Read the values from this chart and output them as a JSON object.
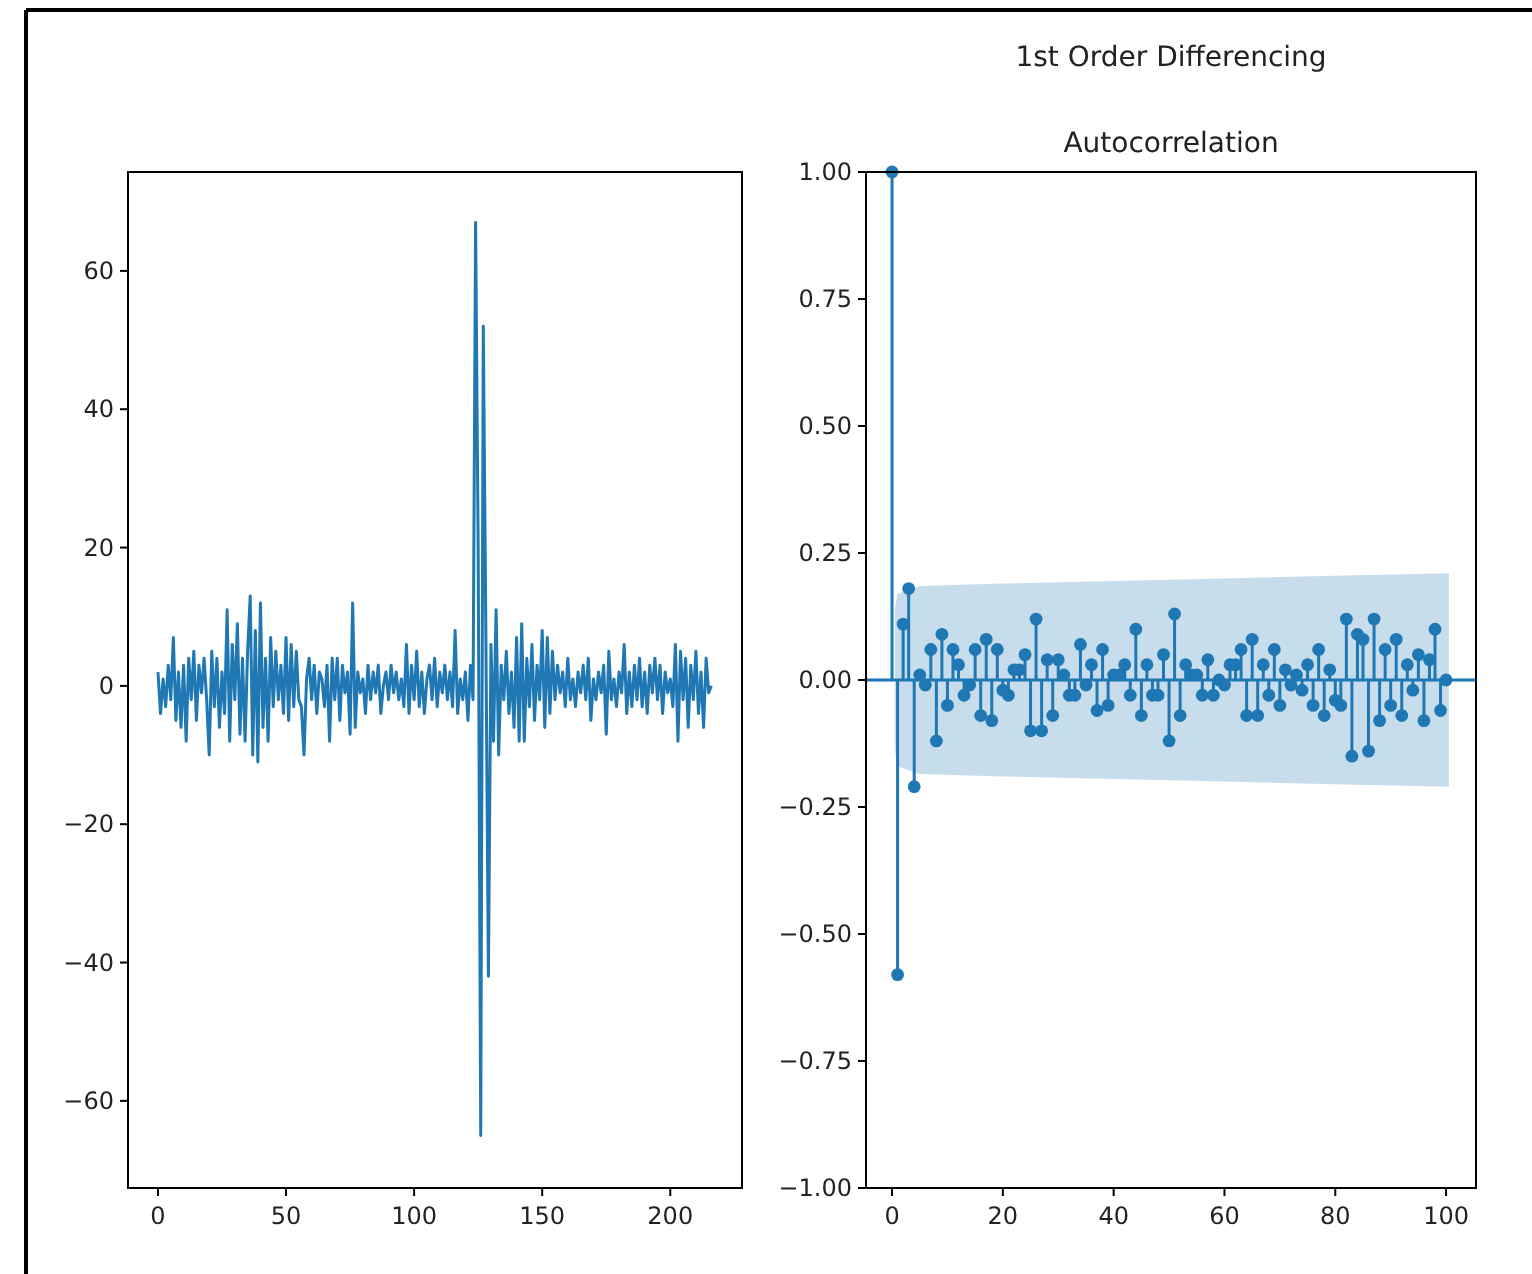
{
  "chart_data": [
    {
      "type": "line",
      "x": [
        0,
        1,
        2,
        3,
        4,
        5,
        6,
        7,
        8,
        9,
        10,
        11,
        12,
        13,
        14,
        15,
        16,
        17,
        18,
        19,
        20,
        21,
        22,
        23,
        24,
        25,
        26,
        27,
        28,
        29,
        30,
        31,
        32,
        33,
        34,
        35,
        36,
        37,
        38,
        39,
        40,
        41,
        42,
        43,
        44,
        45,
        46,
        47,
        48,
        49,
        50,
        51,
        52,
        53,
        54,
        55,
        56,
        57,
        58,
        59,
        60,
        61,
        62,
        63,
        64,
        65,
        66,
        67,
        68,
        69,
        70,
        71,
        72,
        73,
        74,
        75,
        76,
        77,
        78,
        79,
        80,
        81,
        82,
        83,
        84,
        85,
        86,
        87,
        88,
        89,
        90,
        91,
        92,
        93,
        94,
        95,
        96,
        97,
        98,
        99,
        100,
        101,
        102,
        103,
        104,
        105,
        106,
        107,
        108,
        109,
        110,
        111,
        112,
        113,
        114,
        115,
        116,
        117,
        118,
        119,
        120,
        121,
        122,
        123,
        124,
        125,
        126,
        127,
        128,
        129,
        130,
        131,
        132,
        133,
        134,
        135,
        136,
        137,
        138,
        139,
        140,
        141,
        142,
        143,
        144,
        145,
        146,
        147,
        148,
        149,
        150,
        151,
        152,
        153,
        154,
        155,
        156,
        157,
        158,
        159,
        160,
        161,
        162,
        163,
        164,
        165,
        166,
        167,
        168,
        169,
        170,
        171,
        172,
        173,
        174,
        175,
        176,
        177,
        178,
        179,
        180,
        181,
        182,
        183,
        184,
        185,
        186,
        187,
        188,
        189,
        190,
        191,
        192,
        193,
        194,
        195,
        196,
        197,
        198,
        199,
        200,
        201,
        202,
        203,
        204,
        205,
        206,
        207,
        208,
        209,
        210,
        211,
        212,
        213,
        214,
        215,
        216
      ],
      "xlim": [
        -11.7,
        228
      ],
      "ylim": [
        -72.6,
        74.3
      ],
      "xticks": [
        0,
        50,
        100,
        150,
        200
      ],
      "yticks": [
        -60,
        -40,
        -20,
        0,
        20,
        40,
        60
      ],
      "line_style": "solid",
      "series": [
        {
          "color": "#1f77b4",
          "values": [
            2,
            -4,
            1,
            -3,
            3,
            -2,
            7,
            -5,
            2,
            -6,
            3,
            -8,
            4,
            -2,
            5,
            -5,
            3,
            -1,
            4,
            -2,
            -10,
            5,
            -3,
            4,
            -6,
            2,
            -4,
            11,
            -8,
            6,
            -2,
            9,
            -7,
            4,
            -8,
            5,
            13,
            -10,
            8,
            -11,
            12,
            -6,
            4,
            -8,
            7,
            -3,
            5,
            -2,
            3,
            -4,
            7,
            -5,
            6,
            -3,
            5,
            -2,
            -3,
            -10,
            1,
            4,
            -2,
            3,
            -4,
            2,
            1,
            -3,
            3,
            -8,
            4,
            -2,
            4,
            -5,
            3,
            -1,
            2,
            -7,
            12,
            -6,
            2,
            -1,
            1,
            -4,
            3,
            -2,
            2,
            -1,
            3,
            -4,
            0,
            2,
            -2,
            3,
            -1,
            2,
            -2,
            1,
            -3,
            6,
            -4,
            3,
            -2,
            5,
            -3,
            2,
            -4,
            1,
            3,
            -2,
            4,
            -3,
            2,
            -1,
            3,
            -2,
            2,
            -3,
            8,
            -4,
            1,
            -2,
            2,
            -5,
            3,
            -2,
            67,
            20,
            -65,
            52,
            8,
            -42,
            6,
            -8,
            11,
            -10,
            3,
            -2,
            5,
            -4,
            2,
            -6,
            7,
            -8,
            9,
            -8,
            4,
            -3,
            6,
            -5,
            3,
            -2,
            8,
            -6,
            7,
            -4,
            5,
            -2,
            3,
            -1,
            2,
            -3,
            4,
            -2,
            1,
            -3,
            2,
            -1,
            3,
            -2,
            4,
            -5,
            1,
            -2,
            2,
            -1,
            3,
            -7,
            5,
            -2,
            1,
            -3,
            2,
            -1,
            6,
            -4,
            2,
            -3,
            3,
            -2,
            4,
            -3,
            2,
            -4,
            3,
            -1,
            4,
            -2,
            3,
            -4,
            2,
            -1,
            1,
            -3,
            6,
            -8,
            5,
            -2,
            4,
            -6,
            3,
            -2,
            5,
            -4,
            2,
            -6,
            4,
            -1,
            0
          ]
        }
      ]
    },
    {
      "type": "lollipop",
      "title": "Autocorrelation",
      "annotations": [
        "1st Order Differencing"
      ],
      "xlim": [
        -4.7,
        105.4
      ],
      "ylim": [
        -1,
        1
      ],
      "xticks": [
        0,
        20,
        40,
        60,
        80,
        100
      ],
      "yticks": [
        {
          "value": -1,
          "label": "−1.00"
        },
        {
          "value": -0.75,
          "label": "−0.75"
        },
        {
          "value": -0.5,
          "label": "−0.50"
        },
        {
          "value": -0.25,
          "label": "−0.25"
        },
        {
          "value": 0,
          "label": "0.00"
        },
        {
          "value": 0.25,
          "label": "0.25"
        },
        {
          "value": 0.5,
          "label": "0.50"
        },
        {
          "value": 0.75,
          "label": "0.75"
        },
        {
          "value": 1,
          "label": "1.00"
        }
      ],
      "marker": "circle",
      "series": [
        {
          "type": "line",
          "marker": "none",
          "color": "#1f77b4",
          "x": [
            -4.7,
            0.5,
            1,
            5,
            20,
            40,
            60,
            80,
            100.5,
            105.4
          ],
          "values": [
            0,
            0,
            0,
            0,
            0,
            0,
            0,
            0,
            0,
            0
          ],
          "lower": [
            null,
            -0.14,
            -0.17,
            -0.185,
            -0.19,
            -0.195,
            -0.2,
            -0.205,
            -0.21,
            null
          ],
          "upper": [
            null,
            0.14,
            0.17,
            0.185,
            0.19,
            0.195,
            0.2,
            0.205,
            0.21,
            null
          ]
        },
        {
          "type": "lollipop",
          "color": "#1f77b4",
          "x": [
            0,
            1,
            2,
            3,
            4,
            5,
            6,
            7,
            8,
            9,
            10,
            11,
            12,
            13,
            14,
            15,
            16,
            17,
            18,
            19,
            20,
            21,
            22,
            23,
            24,
            25,
            26,
            27,
            28,
            29,
            30,
            31,
            32,
            33,
            34,
            35,
            36,
            37,
            38,
            39,
            40,
            41,
            42,
            43,
            44,
            45,
            46,
            47,
            48,
            49,
            50,
            51,
            52,
            53,
            54,
            55,
            56,
            57,
            58,
            59,
            60,
            61,
            62,
            63,
            64,
            65,
            66,
            67,
            68,
            69,
            70,
            71,
            72,
            73,
            74,
            75,
            76,
            77,
            78,
            79,
            80,
            81,
            82,
            83,
            84,
            85,
            86,
            87,
            88,
            89,
            90,
            91,
            92,
            93,
            94,
            95,
            96,
            97,
            98,
            99,
            100
          ],
          "values": [
            1,
            -0.58,
            0.11,
            0.18,
            -0.21,
            0.01,
            -0.01,
            0.06,
            -0.12,
            0.09,
            -0.05,
            0.06,
            0.03,
            -0.03,
            -0.01,
            0.06,
            -0.07,
            0.08,
            -0.08,
            0.06,
            -0.02,
            -0.03,
            0.02,
            0.02,
            0.05,
            -0.1,
            0.12,
            -0.1,
            0.04,
            -0.07,
            0.04,
            0.01,
            -0.03,
            -0.03,
            0.07,
            -0.01,
            0.03,
            -0.06,
            0.06,
            -0.05,
            0.01,
            0.01,
            0.03,
            -0.03,
            0.1,
            -0.07,
            0.03,
            -0.03,
            -0.03,
            0.05,
            -0.12,
            0.13,
            -0.07,
            0.03,
            0.01,
            0.01,
            -0.03,
            0.04,
            -0.03,
            0,
            -0.01,
            0.03,
            0.03,
            0.06,
            -0.07,
            0.08,
            -0.07,
            0.03,
            -0.03,
            0.06,
            -0.05,
            0.02,
            -0.01,
            0.01,
            -0.02,
            0.03,
            -0.05,
            0.06,
            -0.07,
            0.02,
            -0.04,
            -0.05,
            0.12,
            -0.15,
            0.09,
            0.08,
            -0.14,
            0.12,
            -0.08,
            0.06,
            -0.05,
            0.08,
            -0.07,
            0.03,
            -0.02,
            0.05,
            -0.08,
            0.04,
            0.1,
            -0.06,
            0
          ]
        }
      ]
    }
  ]
}
